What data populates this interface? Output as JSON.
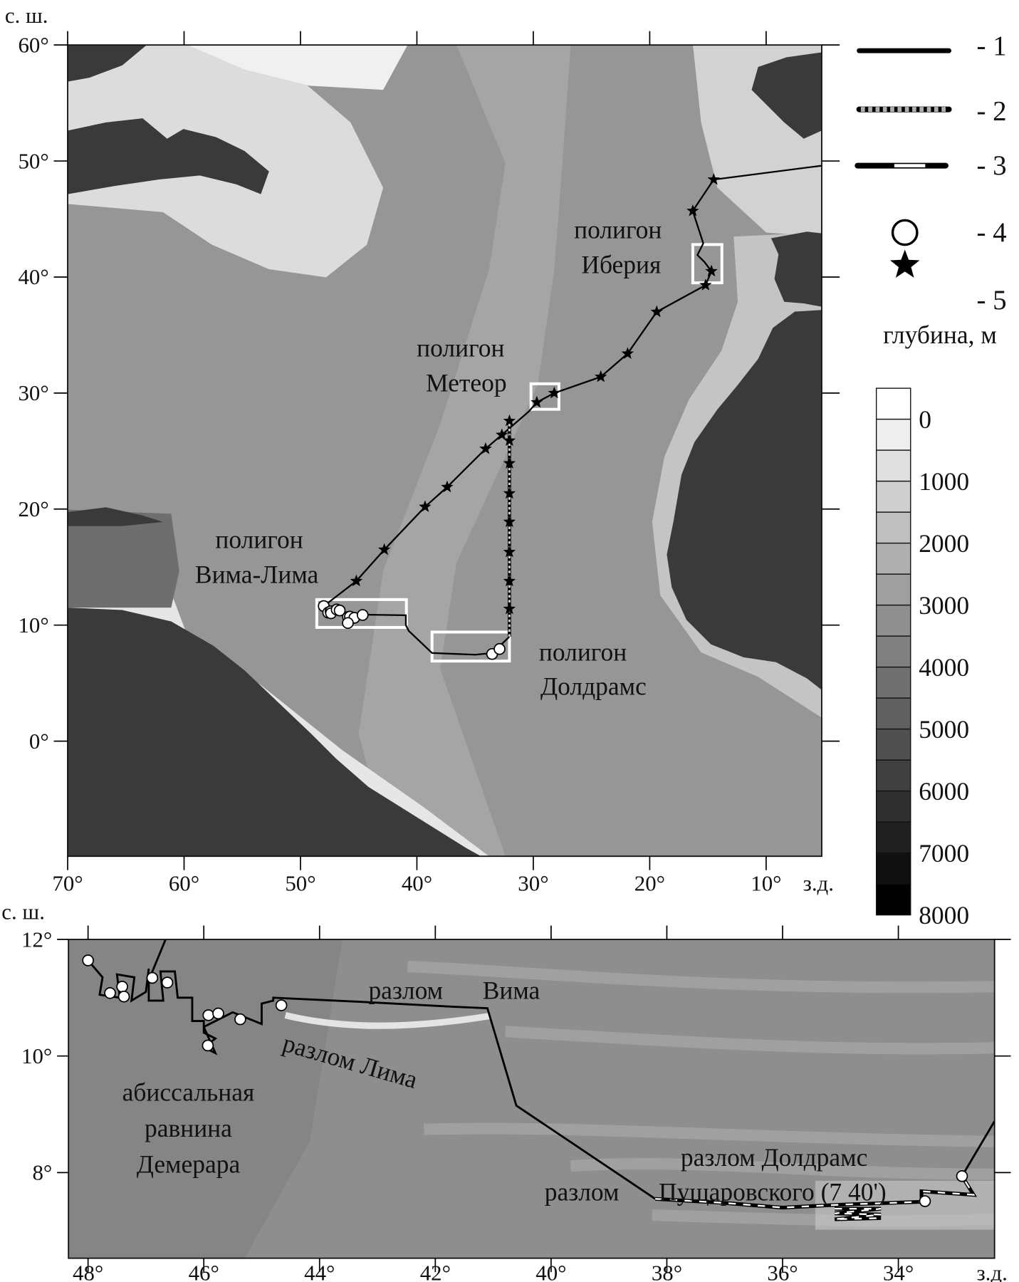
{
  "top_map": {
    "lat_unit_label": "с. ш.",
    "lon_unit_label": "з.д.",
    "extent": {
      "lon_west": 70,
      "lon_east": 5.2,
      "lat_south": -9.9,
      "lat_north": 60
    },
    "lat_ticks": [
      {
        "value": 60,
        "label": "60°"
      },
      {
        "value": 50,
        "label": "50°"
      },
      {
        "value": 40,
        "label": "40°"
      },
      {
        "value": 30,
        "label": "30°"
      },
      {
        "value": 20,
        "label": "20°"
      },
      {
        "value": 10,
        "label": "10°"
      },
      {
        "value": 0,
        "label": "0°"
      }
    ],
    "lon_ticks": [
      {
        "value": 70,
        "label": "70°"
      },
      {
        "value": 60,
        "label": "60°"
      },
      {
        "value": 50,
        "label": "50°"
      },
      {
        "value": 40,
        "label": "40°"
      },
      {
        "value": 30,
        "label": "30°"
      },
      {
        "value": 20,
        "label": "20°"
      },
      {
        "value": 10,
        "label": "10°"
      }
    ],
    "labels": {
      "iberia": {
        "line1": "полигон",
        "line2": "Иберия"
      },
      "meteor": {
        "line1": "полигон",
        "line2": "Метеор"
      },
      "vima_lima": {
        "line1": "полигон",
        "line2": "Вима-Лима"
      },
      "doldrums": {
        "line1": "полигон",
        "line2": "Долдрамс"
      }
    },
    "polygon_boxes": [
      {
        "name": "Иберия",
        "lon_w": 16.3,
        "lon_e": 13.8,
        "lat_s": 39.5,
        "lat_n": 42.8
      },
      {
        "name": "Метеор",
        "lon_w": 30.2,
        "lon_e": 27.8,
        "lat_s": 28.6,
        "lat_n": 30.8
      },
      {
        "name": "Вима-Лима",
        "lon_w": 48.6,
        "lon_e": 40.9,
        "lat_s": 9.8,
        "lat_n": 12.2
      },
      {
        "name": "Долдрамс",
        "lon_w": 38.7,
        "lon_e": 32.05,
        "lat_s": 6.9,
        "lat_n": 9.4
      }
    ],
    "route_type1": [
      [
        5.2,
        49.6
      ],
      [
        14.5,
        48.4
      ],
      [
        16.3,
        45.7
      ],
      [
        15.4,
        42.9
      ],
      [
        15.9,
        41.9
      ],
      [
        15.3,
        41.3
      ],
      [
        14.7,
        40.5
      ],
      [
        15.2,
        39.3
      ],
      [
        19.4,
        37.0
      ],
      [
        21.9,
        33.4
      ],
      [
        24.2,
        31.4
      ],
      [
        28.2,
        30.0
      ],
      [
        29.7,
        29.2
      ],
      [
        30.4,
        28.4
      ],
      [
        32.7,
        26.4
      ],
      [
        34.1,
        25.2
      ],
      [
        37.4,
        21.9
      ],
      [
        39.3,
        20.2
      ],
      [
        42.8,
        16.5
      ],
      [
        45.2,
        13.8
      ],
      [
        48.0,
        11.64
      ]
    ],
    "route_type1_polygons": [
      [
        44.6,
        10.9
      ],
      [
        40.95,
        10.85
      ],
      [
        40.95,
        10.0
      ],
      [
        40.7,
        9.5
      ],
      [
        38.7,
        7.6
      ],
      [
        35.0,
        7.45
      ],
      [
        33.5,
        7.6
      ],
      [
        32.05,
        9.0
      ]
    ],
    "route_type2": [
      [
        32.05,
        9.0
      ],
      [
        32.05,
        27.6
      ]
    ],
    "stars": [
      [
        14.5,
        48.4
      ],
      [
        16.3,
        45.7
      ],
      [
        14.7,
        40.5
      ],
      [
        15.2,
        39.3
      ],
      [
        19.4,
        37.0
      ],
      [
        21.9,
        33.4
      ],
      [
        24.2,
        31.4
      ],
      [
        28.2,
        30.0
      ],
      [
        29.7,
        29.2
      ],
      [
        32.7,
        26.4
      ],
      [
        34.1,
        25.2
      ],
      [
        37.4,
        21.9
      ],
      [
        39.3,
        20.2
      ],
      [
        42.8,
        16.5
      ],
      [
        45.2,
        13.8
      ],
      [
        32.05,
        27.6
      ],
      [
        32.05,
        25.9
      ],
      [
        32.05,
        23.95
      ],
      [
        32.05,
        21.35
      ],
      [
        32.05,
        18.9
      ],
      [
        32.05,
        16.3
      ],
      [
        32.05,
        13.8
      ],
      [
        32.05,
        11.4
      ]
    ]
  },
  "stations": [
    [
      48.0,
      11.64
    ],
    [
      47.62,
      11.08
    ],
    [
      47.41,
      11.19
    ],
    [
      47.38,
      11.02
    ],
    [
      46.89,
      11.34
    ],
    [
      46.63,
      11.26
    ],
    [
      45.92,
      10.7
    ],
    [
      45.75,
      10.73
    ],
    [
      45.37,
      10.63
    ],
    [
      45.93,
      10.18
    ],
    [
      44.66,
      10.87
    ],
    [
      33.54,
      7.51
    ],
    [
      32.9,
      7.94
    ]
  ],
  "bottom_map": {
    "lat_unit_label": "с. ш.",
    "lon_unit_label": "з.д.",
    "extent": {
      "lon_west": 48.5,
      "lon_east": 32.34,
      "lat_south": 6.5,
      "lat_north": 12
    },
    "lat_ticks": [
      {
        "value": 12,
        "label": "12°"
      },
      {
        "value": 10,
        "label": "10°"
      },
      {
        "value": 8,
        "label": "8°"
      }
    ],
    "lon_ticks": [
      {
        "value": 48,
        "label": "48°"
      },
      {
        "value": 46,
        "label": "46°"
      },
      {
        "value": 44,
        "label": "44°"
      },
      {
        "value": 42,
        "label": "42°"
      },
      {
        "value": 40,
        "label": "40°"
      },
      {
        "value": 38,
        "label": "38°"
      },
      {
        "value": 36,
        "label": "36°"
      },
      {
        "value": 34,
        "label": "34°"
      }
    ],
    "labels": {
      "vima_word1": "разлом",
      "vima_word2": "Вима",
      "lima": "разлом Лима",
      "demerara1": "абиссальная",
      "demerara2": "равнина",
      "demerara3": "Демерара",
      "doldrums": "разлом Долдрамс",
      "pushcharovsky_word1": "разлом",
      "pushcharovsky_word2": "Пущаровского (7 40')"
    },
    "route_type1": [
      [
        46.66,
        12.0
      ],
      [
        46.95,
        11.3
      ],
      [
        46.95,
        10.95
      ],
      [
        46.7,
        10.95
      ],
      [
        46.75,
        11.45
      ],
      [
        46.5,
        11.45
      ],
      [
        46.45,
        11.0
      ],
      [
        46.2,
        11.0
      ],
      [
        46.2,
        10.6
      ],
      [
        46.0,
        10.6
      ],
      [
        46.0,
        10.4
      ],
      [
        45.8,
        10.3
      ],
      [
        46.0,
        10.15
      ],
      [
        45.8,
        10.05
      ],
      [
        46.0,
        10.5
      ],
      [
        45.5,
        10.75
      ],
      [
        45.0,
        10.55
      ],
      [
        45.0,
        10.9
      ],
      [
        44.8,
        10.95
      ],
      [
        44.8,
        11.0
      ],
      [
        43.3,
        10.93
      ],
      [
        41.8,
        10.85
      ],
      [
        41.1,
        10.82
      ],
      [
        40.6,
        9.15
      ],
      [
        38.2,
        7.55
      ]
    ],
    "route_survey": [
      [
        48.0,
        11.64
      ],
      [
        47.75,
        11.35
      ],
      [
        47.8,
        11.05
      ],
      [
        47.45,
        11.0
      ],
      [
        47.5,
        11.4
      ],
      [
        47.2,
        11.35
      ],
      [
        47.25,
        10.95
      ],
      [
        47.0,
        11.1
      ],
      [
        46.95,
        11.5
      ]
    ],
    "route_type3": [
      [
        38.2,
        7.55
      ],
      [
        37.0,
        7.48
      ],
      [
        36.0,
        7.4
      ],
      [
        35.0,
        7.45
      ],
      [
        33.6,
        7.5
      ],
      [
        33.6,
        7.68
      ],
      [
        32.7,
        7.62
      ],
      [
        32.9,
        7.94
      ]
    ],
    "route_type3_survey": [
      [
        35.1,
        7.38
      ],
      [
        34.3,
        7.38
      ],
      [
        35.1,
        7.3
      ],
      [
        34.3,
        7.28
      ],
      [
        35.1,
        7.2
      ],
      [
        34.3,
        7.22
      ]
    ],
    "route_type1_exit": [
      [
        32.9,
        7.94
      ],
      [
        32.34,
        8.88
      ]
    ]
  },
  "legend": {
    "items": [
      {
        "symbol": "solid-line",
        "label": "- 1"
      },
      {
        "symbol": "dotted-line",
        "label": "- 2"
      },
      {
        "symbol": "dashed-line",
        "label": "- 3"
      },
      {
        "symbol": "circle",
        "label": "- 4"
      },
      {
        "symbol": "star",
        "label": "- 5"
      }
    ]
  },
  "depth_scale": {
    "title": "глубина, м",
    "ticks": [
      "0",
      "1000",
      "2000",
      "3000",
      "4000",
      "5000",
      "6000",
      "7000",
      "8000"
    ],
    "band_count": 17
  }
}
